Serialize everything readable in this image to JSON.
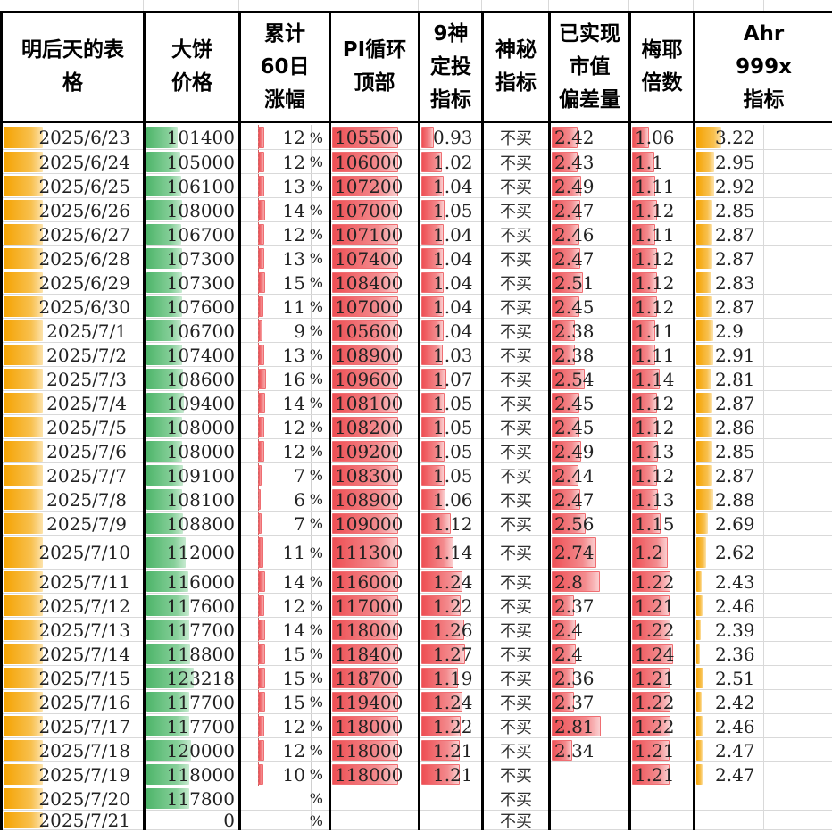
{
  "colors": {
    "date_bar": "#f5a200",
    "price_bar": "#4eb56a",
    "red_bar": "#ee4f54",
    "ahr_bar": "#f5a200",
    "header_border": "#000000",
    "grid": "#d9d9d9"
  },
  "headers": {
    "date": "明后天的表\n格",
    "price": "大饼\n价格",
    "gain60": "累计\n60日\n涨幅",
    "pi": "PI循环\n顶部",
    "nine": "9神\n定投\n指标",
    "mystic": "神秘\n指标",
    "mvrv": "已实现\n市值\n偏差量",
    "mayer": "梅耶\n倍数",
    "ahr": "Ahr\n999x\n指标"
  },
  "pct_symbol": "%",
  "rows": [
    {
      "date": "2025/6/23",
      "price": "101400",
      "gain": "12",
      "pi": "105500",
      "nine": "0.93",
      "mystic": "不买",
      "mvrv": "2.42",
      "mayer": "1.06",
      "ahr": "3.22"
    },
    {
      "date": "2025/6/24",
      "price": "105000",
      "gain": "12",
      "pi": "106000",
      "nine": "1.02",
      "mystic": "不买",
      "mvrv": "2.43",
      "mayer": "1.1",
      "ahr": "2.95"
    },
    {
      "date": "2025/6/25",
      "price": "106100",
      "gain": "13",
      "pi": "107200",
      "nine": "1.04",
      "mystic": "不买",
      "mvrv": "2.49",
      "mayer": "1.11",
      "ahr": "2.92"
    },
    {
      "date": "2025/6/26",
      "price": "108000",
      "gain": "14",
      "pi": "107000",
      "nine": "1.05",
      "mystic": "不买",
      "mvrv": "2.47",
      "mayer": "1.12",
      "ahr": "2.85"
    },
    {
      "date": "2025/6/27",
      "price": "106700",
      "gain": "12",
      "pi": "107100",
      "nine": "1.04",
      "mystic": "不买",
      "mvrv": "2.46",
      "mayer": "1.11",
      "ahr": "2.87"
    },
    {
      "date": "2025/6/28",
      "price": "107300",
      "gain": "13",
      "pi": "107400",
      "nine": "1.04",
      "mystic": "不买",
      "mvrv": "2.47",
      "mayer": "1.12",
      "ahr": "2.87"
    },
    {
      "date": "2025/6/29",
      "price": "107300",
      "gain": "15",
      "pi": "108400",
      "nine": "1.04",
      "mystic": "不买",
      "mvrv": "2.51",
      "mayer": "1.12",
      "ahr": "2.83"
    },
    {
      "date": "2025/6/30",
      "price": "107600",
      "gain": "11",
      "pi": "107000",
      "nine": "1.04",
      "mystic": "不买",
      "mvrv": "2.45",
      "mayer": "1.12",
      "ahr": "2.87"
    },
    {
      "date": "2025/7/1",
      "price": "106700",
      "gain": "9",
      "pi": "105600",
      "nine": "1.04",
      "mystic": "不买",
      "mvrv": "2.38",
      "mayer": "1.11",
      "ahr": "2.9"
    },
    {
      "date": "2025/7/2",
      "price": "107400",
      "gain": "13",
      "pi": "108900",
      "nine": "1.03",
      "mystic": "不买",
      "mvrv": "2.38",
      "mayer": "1.11",
      "ahr": "2.91"
    },
    {
      "date": "2025/7/3",
      "price": "108600",
      "gain": "16",
      "pi": "109600",
      "nine": "1.07",
      "mystic": "不买",
      "mvrv": "2.54",
      "mayer": "1.14",
      "ahr": "2.81"
    },
    {
      "date": "2025/7/4",
      "price": "109400",
      "gain": "14",
      "pi": "108100",
      "nine": "1.05",
      "mystic": "不买",
      "mvrv": "2.45",
      "mayer": "1.12",
      "ahr": "2.87"
    },
    {
      "date": "2025/7/5",
      "price": "108000",
      "gain": "12",
      "pi": "108200",
      "nine": "1.05",
      "mystic": "不买",
      "mvrv": "2.45",
      "mayer": "1.12",
      "ahr": "2.86"
    },
    {
      "date": "2025/7/6",
      "price": "108000",
      "gain": "12",
      "pi": "109200",
      "nine": "1.05",
      "mystic": "不买",
      "mvrv": "2.49",
      "mayer": "1.13",
      "ahr": "2.85"
    },
    {
      "date": "2025/7/7",
      "price": "109100",
      "gain": "7",
      "pi": "108300",
      "nine": "1.05",
      "mystic": "不买",
      "mvrv": "2.44",
      "mayer": "1.12",
      "ahr": "2.87"
    },
    {
      "date": "2025/7/8",
      "price": "108100",
      "gain": "6",
      "pi": "108900",
      "nine": "1.06",
      "mystic": "不买",
      "mvrv": "2.47",
      "mayer": "1.13",
      "ahr": "2.88"
    },
    {
      "date": "2025/7/9",
      "price": "108800",
      "gain": "7",
      "pi": "109000",
      "nine": "1.12",
      "mystic": "不买",
      "mvrv": "2.56",
      "mayer": "1.15",
      "ahr": "2.69"
    },
    {
      "date": "2025/7/10",
      "price": "112000",
      "gain": "11",
      "pi": "111300",
      "nine": "1.14",
      "mystic": "不买",
      "mvrv": "2.74",
      "mayer": "1.2",
      "ahr": "2.62"
    },
    {
      "date": "2025/7/11",
      "price": "116000",
      "gain": "14",
      "pi": "116000",
      "nine": "1.24",
      "mystic": "不买",
      "mvrv": "2.8",
      "mayer": "1.22",
      "ahr": "2.43"
    },
    {
      "date": "2025/7/12",
      "price": "117600",
      "gain": "12",
      "pi": "117000",
      "nine": "1.22",
      "mystic": "不买",
      "mvrv": "2.37",
      "mayer": "1.21",
      "ahr": "2.46"
    },
    {
      "date": "2025/7/13",
      "price": "117700",
      "gain": "14",
      "pi": "118000",
      "nine": "1.26",
      "mystic": "不买",
      "mvrv": "2.4",
      "mayer": "1.22",
      "ahr": "2.39"
    },
    {
      "date": "2025/7/14",
      "price": "118800",
      "gain": "15",
      "pi": "118400",
      "nine": "1.27",
      "mystic": "不买",
      "mvrv": "2.4",
      "mayer": "1.24",
      "ahr": "2.36"
    },
    {
      "date": "2025/7/15",
      "price": "123218",
      "gain": "15",
      "pi": "118700",
      "nine": "1.19",
      "mystic": "不买",
      "mvrv": "2.36",
      "mayer": "1.21",
      "ahr": "2.51"
    },
    {
      "date": "2025/7/16",
      "price": "117700",
      "gain": "15",
      "pi": "119400",
      "nine": "1.24",
      "mystic": "不买",
      "mvrv": "2.37",
      "mayer": "1.22",
      "ahr": "2.42"
    },
    {
      "date": "2025/7/17",
      "price": "117700",
      "gain": "12",
      "pi": "118000",
      "nine": "1.22",
      "mystic": "不买",
      "mvrv": "2.81",
      "mayer": "1.22",
      "ahr": "2.46"
    },
    {
      "date": "2025/7/18",
      "price": "120000",
      "gain": "12",
      "pi": "118000",
      "nine": "1.21",
      "mystic": "不买",
      "mvrv": "2.34",
      "mayer": "1.21",
      "ahr": "2.47"
    },
    {
      "date": "2025/7/19",
      "price": "118000",
      "gain": "10",
      "pi": "118000",
      "nine": "1.21",
      "mystic": "不买",
      "mvrv": "",
      "mayer": "1.21",
      "ahr": "2.47"
    },
    {
      "date": "2025/7/20",
      "price": "117800",
      "gain": "",
      "pi": "",
      "nine": "",
      "mystic": "不买",
      "mvrv": "",
      "mayer": "",
      "ahr": ""
    },
    {
      "date": "2025/7/21",
      "price": "0",
      "gain": "",
      "pi": "",
      "nine": "",
      "mystic": "不买",
      "mvrv": "",
      "mayer": "",
      "ahr": ""
    }
  ]
}
